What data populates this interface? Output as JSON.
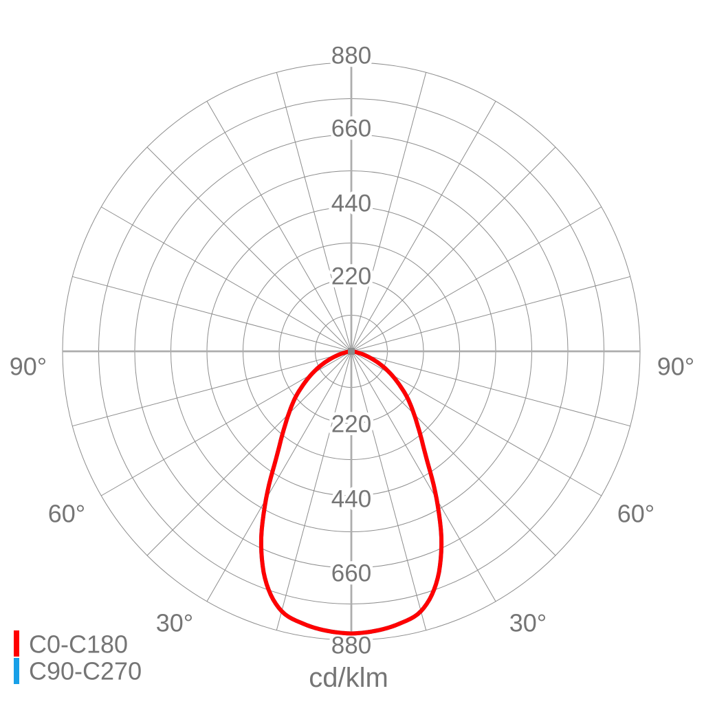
{
  "chart_data": {
    "type": "polar-photometric",
    "title": "",
    "units_label": "cd/klm",
    "radial_axis": {
      "grid_step": 110,
      "labeled_ticks": [
        220,
        440,
        660,
        880
      ],
      "max": 880
    },
    "angle_grid_step_deg": 15,
    "angle_labels": {
      "left": [
        "90°",
        "60°",
        "30°"
      ],
      "right": [
        "90°",
        "60°",
        "30°"
      ]
    },
    "legend": [
      {
        "label": "C0-C180",
        "color": "#ff0000"
      },
      {
        "label": "C90-C270",
        "color": "#18a0e8"
      }
    ],
    "series": [
      {
        "name": "C0-C180",
        "color": "#ff0000",
        "symmetric_about_vertical_axis": true,
        "angles_deg": [
          0,
          5,
          10,
          15,
          20,
          25,
          30,
          35,
          40,
          45,
          50,
          55,
          60,
          65,
          70,
          75,
          80,
          85,
          90
        ],
        "values_cd_per_klm": [
          860,
          855,
          843,
          820,
          755,
          650,
          520,
          400,
          325,
          270,
          225,
          180,
          140,
          103,
          68,
          38,
          16,
          4,
          0
        ]
      },
      {
        "name": "C90-C270",
        "color": "#18a0e8",
        "coincides_with_C0_C180": true,
        "symmetric_about_vertical_axis": true,
        "angles_deg": [
          0,
          5,
          10,
          15,
          20,
          25,
          30,
          35,
          40,
          45,
          50,
          55,
          60,
          65,
          70,
          75,
          80,
          85,
          90
        ],
        "values_cd_per_klm": [
          860,
          855,
          843,
          820,
          755,
          650,
          520,
          400,
          325,
          270,
          225,
          180,
          140,
          103,
          68,
          38,
          16,
          4,
          0
        ]
      }
    ],
    "colors": {
      "grid": "#8c8c8c",
      "axis": "#adadad",
      "text": "#757575",
      "background": "#ffffff",
      "center_marker": "#8c8c8c"
    }
  }
}
